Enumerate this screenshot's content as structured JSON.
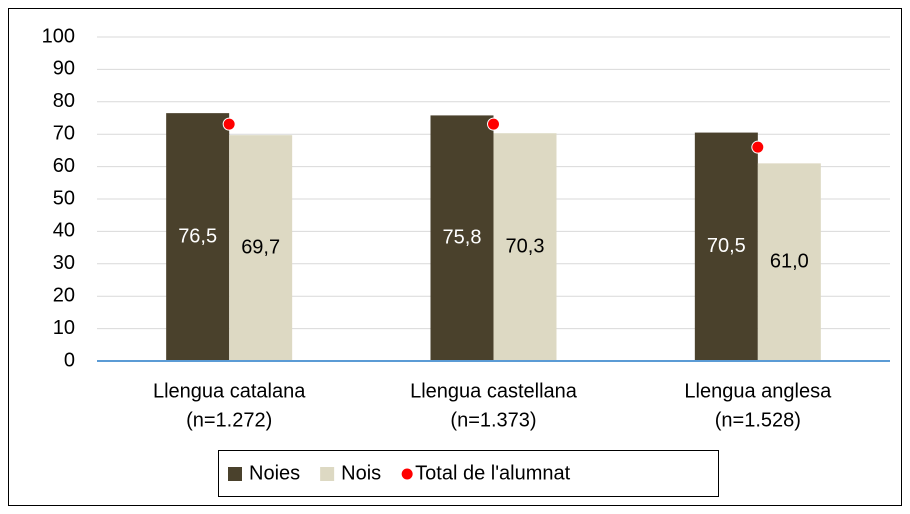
{
  "chart_data": {
    "type": "bar",
    "categories": [
      [
        "Llengua catalana",
        "(n=1.272)"
      ],
      [
        "Llengua castellana",
        "(n=1.373)"
      ],
      [
        "Llengua anglesa",
        "(n=1.528)"
      ]
    ],
    "series": [
      {
        "name": "Noies",
        "type": "bar",
        "color": "#4a412c",
        "label_color": "#ffffff",
        "values": [
          76.5,
          75.8,
          70.5
        ],
        "value_labels": [
          "76,5",
          "75,8",
          "70,5"
        ]
      },
      {
        "name": "Nois",
        "type": "bar",
        "color": "#ddd9c3",
        "label_color": "#000000",
        "values": [
          69.7,
          70.3,
          61.0
        ],
        "value_labels": [
          "69,7",
          "70,3",
          "61,0"
        ]
      },
      {
        "name": "Total de l'alumnat",
        "type": "scatter",
        "color": "#ff0000",
        "values": [
          73.1,
          73.1,
          66.0
        ]
      }
    ],
    "ylim": [
      0,
      100
    ],
    "yticks": [
      0,
      10,
      20,
      30,
      40,
      50,
      60,
      70,
      80,
      90,
      100
    ],
    "grid": true,
    "legend": "bottom"
  }
}
